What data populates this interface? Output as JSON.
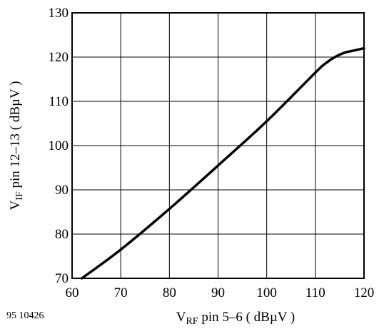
{
  "figure_id": "95 10426",
  "chart_data": {
    "type": "line",
    "title": "",
    "xlabel": {
      "main": "V",
      "sub": "RF",
      "rest": " pin 5–6 ( dBµV )"
    },
    "ylabel": {
      "main": "V",
      "sub": "IF",
      "rest": "  pin 12–13 ( dBµV )"
    },
    "xlim": [
      60,
      120
    ],
    "ylim": [
      70,
      130
    ],
    "xticks": [
      60,
      70,
      80,
      90,
      100,
      110,
      120
    ],
    "yticks": [
      70,
      80,
      90,
      100,
      110,
      120,
      130
    ],
    "grid": true,
    "legend": "none",
    "line_color": "#000000",
    "series": [
      {
        "x": [
          62,
          70,
          80,
          90,
          100,
          110,
          112,
          114,
          116,
          118,
          120
        ],
        "y": [
          70,
          76.5,
          85.7,
          95.5,
          105.5,
          116.5,
          118.5,
          120,
          121,
          121.5,
          122
        ]
      }
    ]
  }
}
